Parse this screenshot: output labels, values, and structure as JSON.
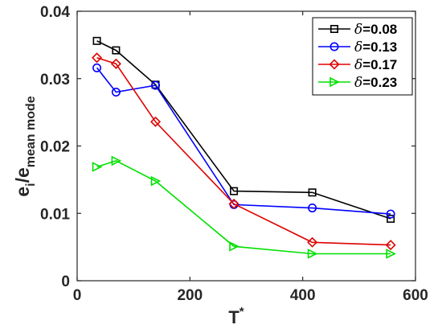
{
  "chart_data": {
    "type": "line",
    "xlabel": "T",
    "xlabel_sup": "*",
    "ylabel_main": "e",
    "ylabel_sub1": "i",
    "ylabel_sep": "/e",
    "ylabel_sub2": "mean mode",
    "xlim": [
      0,
      600
    ],
    "ylim": [
      0,
      0.04
    ],
    "xticks": [
      0,
      200,
      400,
      600
    ],
    "xtick_labels": [
      "0",
      "200",
      "400",
      "600"
    ],
    "yticks": [
      0,
      0.01,
      0.02,
      0.03,
      0.04
    ],
    "ytick_labels": [
      "0",
      "0.01",
      "0.02",
      "0.03",
      "0.04"
    ],
    "legend_position": "top-right",
    "grid": false,
    "series": [
      {
        "name": "δ=0.08",
        "legend_symbol": "δ",
        "legend_value": "=0.08",
        "color": "#000000",
        "marker": "square",
        "x": [
          35,
          69,
          139,
          278,
          417,
          556
        ],
        "y": [
          0.0356,
          0.0342,
          0.0291,
          0.0133,
          0.0131,
          0.0092
        ]
      },
      {
        "name": "δ=0.13",
        "legend_symbol": "δ",
        "legend_value": "=0.13",
        "color": "#0000ff",
        "marker": "circle",
        "x": [
          35,
          69,
          139,
          278,
          417,
          556
        ],
        "y": [
          0.0316,
          0.028,
          0.029,
          0.0113,
          0.0108,
          0.0099
        ]
      },
      {
        "name": "δ=0.17",
        "legend_symbol": "δ",
        "legend_value": "=0.17",
        "color": "#e00000",
        "marker": "diamond",
        "x": [
          35,
          69,
          139,
          278,
          417,
          556
        ],
        "y": [
          0.0331,
          0.0322,
          0.0236,
          0.0114,
          0.0057,
          0.0053
        ]
      },
      {
        "name": "δ=0.23",
        "legend_symbol": "δ",
        "legend_value": "=0.23",
        "color": "#00e000",
        "marker": "triangle-right",
        "x": [
          35,
          69,
          139,
          278,
          417,
          556
        ],
        "y": [
          0.0169,
          0.0178,
          0.0148,
          0.0051,
          0.004,
          0.004
        ]
      }
    ]
  }
}
